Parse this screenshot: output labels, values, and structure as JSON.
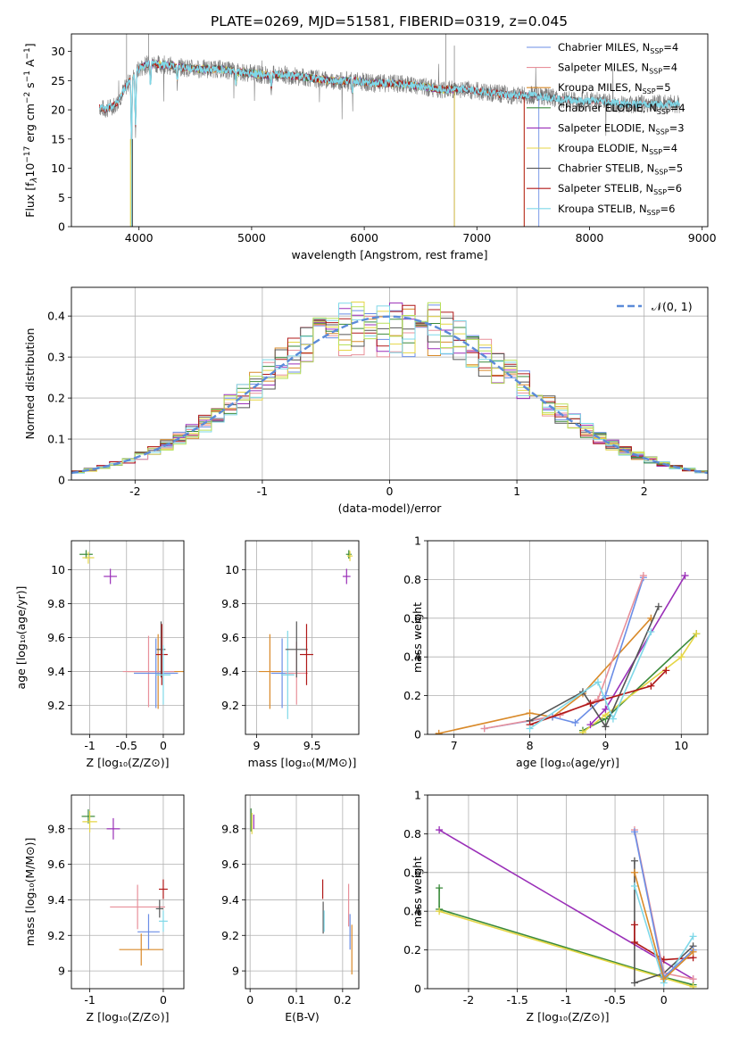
{
  "title": "PLATE=0269, MJD=51581, FIBERID=0319, z=0.045",
  "colors": {
    "Chabrier MILES": "#6b8ee6",
    "Salpeter MILES": "#e8909a",
    "Kroupa MILES": "#d98a2a",
    "Chabrier ELODIE": "#3a8a3a",
    "Salpeter ELODIE": "#9a2fb8",
    "Kroupa ELODIE": "#e5d645",
    "Chabrier STELIB": "#555555",
    "Salpeter STELIB": "#b01818",
    "Kroupa STELIB": "#7fd8e8",
    "pinkmag": "#e07ab8",
    "lime": "#b8e05a",
    "gauss": "#5b8bd8"
  },
  "chart_data": [
    {
      "id": "spectrum",
      "type": "line",
      "title": "PLATE=0269, MJD=51581, FIBERID=0319, z=0.045",
      "xlabel": "wavelength [Angstrom, rest frame]",
      "ylabel_pre": "Flux [f",
      "ylabel_sub": "λ",
      "ylabel_mid": "10",
      "ylabel_sup1": "−17",
      "ylabel_mid2": " erg cm",
      "ylabel_sup2": "−2",
      "ylabel_mid3": " s",
      "ylabel_sup3": "−1",
      "ylabel_mid4": " A",
      "ylabel_sup4": "−1",
      "ylabel_end": "]",
      "xlim": [
        3400,
        9050
      ],
      "ylim": [
        0,
        33
      ],
      "xticks": [
        4000,
        5000,
        6000,
        7000,
        8000,
        9000
      ],
      "yticks": [
        0,
        5,
        10,
        15,
        20,
        25,
        30
      ],
      "legend_position": "upper-right",
      "series": [
        {
          "name": "Chabrier MILES",
          "nssp": "4"
        },
        {
          "name": "Salpeter MILES",
          "nssp": "4"
        },
        {
          "name": "Kroupa MILES",
          "nssp": "5"
        },
        {
          "name": "Chabrier ELODIE",
          "nssp": "4"
        },
        {
          "name": "Salpeter ELODIE",
          "nssp": "3"
        },
        {
          "name": "Kroupa ELODIE",
          "nssp": "4"
        },
        {
          "name": "Chabrier STELIB",
          "nssp": "5"
        },
        {
          "name": "Salpeter STELIB",
          "nssp": "6"
        },
        {
          "name": "Kroupa STELIB",
          "nssp": "6"
        }
      ],
      "nssp_label": "N",
      "nssp_sub": "SSP",
      "data_envelope": {
        "x": [
          3650,
          3700,
          3800,
          3900,
          4000,
          4100,
          4300,
          4500,
          4700,
          4900,
          5100,
          5300,
          5500,
          5700,
          5900,
          6100,
          6300,
          6500,
          6700,
          6900,
          7100,
          7300,
          7500,
          7700,
          7900,
          8100,
          8300,
          8500,
          8700,
          8800
        ],
        "y": [
          20.5,
          20,
          21,
          24.5,
          27,
          28,
          27.5,
          27,
          27,
          26.5,
          26,
          26,
          25.5,
          25,
          25,
          24.5,
          24.5,
          24,
          23.5,
          23.5,
          23,
          22.5,
          22.5,
          22,
          21.5,
          21.5,
          21,
          21,
          21,
          21
        ]
      },
      "model_end": {
        "Kroupa MILES": 7420,
        "Salpeter STELIB": 7420,
        "Chabrier MILES": 7550,
        "Kroupa ELODIE": 6800,
        "Chabrier ELODIE": 6800,
        "Salpeter ELODIE": 6800
      }
    },
    {
      "id": "residuals",
      "type": "bar",
      "xlabel": "(data-model)/error",
      "ylabel": "Normed distribution",
      "xlim": [
        -2.5,
        2.5
      ],
      "ylim": [
        0,
        0.47
      ],
      "xticks": [
        -2,
        -1,
        0,
        1,
        2
      ],
      "yticks": [
        0.0,
        0.1,
        0.2,
        0.3,
        0.4
      ],
      "legend_position": "upper-right",
      "gauss_label": "𝒩(0, 1)",
      "bin_width": 0.1
    },
    {
      "id": "age_vs_Z",
      "type": "scatter",
      "xlabel": "Z [log₁₀(Z/Z⊙)]",
      "ylabel": "age  [log₁₀(age/yr)]",
      "xlim": [
        -1.25,
        0.28
      ],
      "ylim": [
        9.03,
        10.17
      ],
      "xticks": [
        -1,
        -0.5,
        0
      ],
      "yticks": [
        9.2,
        9.4,
        9.6,
        9.8,
        10.0
      ],
      "points": [
        {
          "series": "Chabrier ELODIE",
          "x": -1.05,
          "y": 10.09,
          "xe": 0.18,
          "ye": 0.05
        },
        {
          "series": "Kroupa ELODIE",
          "x": -1.02,
          "y": 10.07,
          "xe": 0.16,
          "ye": 0.07
        },
        {
          "series": "Salpeter ELODIE",
          "x": -0.72,
          "y": 9.96,
          "xe": 0.18,
          "ye": 0.09
        },
        {
          "series": "Kroupa MILES",
          "x": -0.07,
          "y": 9.4,
          "xe": 0.83,
          "ye": 0.44
        },
        {
          "series": "Salpeter MILES",
          "x": -0.2,
          "y": 9.4,
          "xe": 0.7,
          "ye": 0.42
        },
        {
          "series": "Chabrier MILES",
          "x": -0.1,
          "y": 9.39,
          "xe": 0.6,
          "ye": 0.41
        },
        {
          "series": "Chabrier STELIB",
          "x": -0.03,
          "y": 9.53,
          "xe": 0.12,
          "ye": 0.33
        },
        {
          "series": "Salpeter STELIB",
          "x": -0.02,
          "y": 9.5,
          "xe": 0.16,
          "ye": 0.36
        },
        {
          "series": "Kroupa STELIB",
          "x": 0.0,
          "y": 9.38,
          "xe": 0.2,
          "ye": 0.35
        }
      ]
    },
    {
      "id": "age_vs_mass",
      "type": "scatter",
      "xlabel": "mass [log₁₀(M/M⊙)]",
      "xlim": [
        8.9,
        9.92
      ],
      "ylim": [
        9.03,
        10.17
      ],
      "xticks": [
        9.0,
        9.5
      ],
      "yticks": [
        9.2,
        9.4,
        9.6,
        9.8,
        10.0
      ],
      "points": [
        {
          "series": "Chabrier ELODIE",
          "x": 9.83,
          "y": 10.09,
          "xe": 0.05,
          "ye": 0.05
        },
        {
          "series": "Kroupa ELODIE",
          "x": 9.84,
          "y": 10.08,
          "xe": 0.05,
          "ye": 0.06
        },
        {
          "series": "Salpeter ELODIE",
          "x": 9.81,
          "y": 9.96,
          "xe": 0.07,
          "ye": 0.09
        },
        {
          "series": "Kroupa MILES",
          "x": 9.12,
          "y": 9.4,
          "xe": 0.2,
          "ye": 0.44
        },
        {
          "series": "Chabrier MILES",
          "x": 9.23,
          "y": 9.39,
          "xe": 0.2,
          "ye": 0.41
        },
        {
          "series": "Salpeter MILES",
          "x": 9.36,
          "y": 9.39,
          "xe": 0.2,
          "ye": 0.37
        },
        {
          "series": "Kroupa STELIB",
          "x": 9.28,
          "y": 9.38,
          "xe": 0.12,
          "ye": 0.52
        },
        {
          "series": "Chabrier STELIB",
          "x": 9.36,
          "y": 9.53,
          "xe": 0.2,
          "ye": 0.33
        },
        {
          "series": "Salpeter STELIB",
          "x": 9.45,
          "y": 9.5,
          "xe": 0.12,
          "ye": 0.36
        }
      ]
    },
    {
      "id": "mass_weight_vs_age",
      "type": "line",
      "xlabel": "age  [log₁₀(age/yr)]",
      "ylabel": "mass weight",
      "xlim": [
        6.65,
        10.35
      ],
      "ylim": [
        0,
        1.0
      ],
      "xticks": [
        7,
        8,
        9,
        10
      ],
      "yticks": [
        0.0,
        0.2,
        0.4,
        0.6,
        0.8,
        1.0
      ],
      "series": [
        {
          "name": "Kroupa MILES",
          "x": [
            6.8,
            8.0,
            8.3,
            8.7,
            9.6
          ],
          "y": [
            0.005,
            0.11,
            0.09,
            0.21,
            0.6
          ]
        },
        {
          "name": "Chabrier MILES",
          "x": [
            7.4,
            8.3,
            8.6,
            9.0,
            9.5
          ],
          "y": [
            0.03,
            0.09,
            0.06,
            0.2,
            0.81
          ]
        },
        {
          "name": "Salpeter MILES",
          "x": [
            7.4,
            8.4,
            8.9,
            9.5
          ],
          "y": [
            0.03,
            0.1,
            0.18,
            0.82
          ]
        },
        {
          "name": "Chabrier ELODIE",
          "x": [
            8.7,
            9.0,
            10.2
          ],
          "y": [
            0.02,
            0.08,
            0.52
          ]
        },
        {
          "name": "Kroupa ELODIE",
          "x": [
            8.7,
            9.0,
            10.0,
            10.2
          ],
          "y": [
            0.01,
            0.1,
            0.4,
            0.52
          ]
        },
        {
          "name": "Salpeter ELODIE",
          "x": [
            8.8,
            9.0,
            10.05
          ],
          "y": [
            0.05,
            0.13,
            0.82
          ]
        },
        {
          "name": "Chabrier STELIB",
          "x": [
            8.0,
            8.7,
            9.0,
            9.7
          ],
          "y": [
            0.07,
            0.22,
            0.04,
            0.66
          ]
        },
        {
          "name": "Salpeter STELIB",
          "x": [
            8.0,
            8.8,
            9.6,
            9.8
          ],
          "y": [
            0.05,
            0.16,
            0.25,
            0.33
          ]
        },
        {
          "name": "Kroupa STELIB",
          "x": [
            8.0,
            8.9,
            9.1,
            9.6
          ],
          "y": [
            0.03,
            0.27,
            0.08,
            0.53
          ]
        }
      ]
    },
    {
      "id": "mass_vs_Z",
      "type": "scatter",
      "xlabel": "Z [log₁₀(Z/Z⊙)]",
      "ylabel": "mass [log₁₀(M/M⊙)]",
      "xlim": [
        -1.25,
        0.28
      ],
      "ylim": [
        8.9,
        9.99
      ],
      "xticks": [
        -1,
        0
      ],
      "yticks": [
        9.0,
        9.2,
        9.4,
        9.6,
        9.8
      ],
      "points": [
        {
          "series": "Chabrier ELODIE",
          "x": -1.02,
          "y": 9.87,
          "xe": 0.18,
          "ye": 0.08
        },
        {
          "series": "Kroupa ELODIE",
          "x": -1.0,
          "y": 9.84,
          "xe": 0.2,
          "ye": 0.12
        },
        {
          "series": "Salpeter ELODIE",
          "x": -0.68,
          "y": 9.8,
          "xe": 0.18,
          "ye": 0.12
        },
        {
          "series": "Salpeter MILES",
          "x": -0.35,
          "y": 9.36,
          "xe": 0.75,
          "ye": 0.25
        },
        {
          "series": "Chabrier MILES",
          "x": -0.2,
          "y": 9.22,
          "xe": 0.3,
          "ye": 0.2
        },
        {
          "series": "Kroupa MILES",
          "x": -0.3,
          "y": 9.12,
          "xe": 0.6,
          "ye": 0.18
        },
        {
          "series": "Salpeter STELIB",
          "x": 0.0,
          "y": 9.46,
          "xe": 0.12,
          "ye": 0.11
        },
        {
          "series": "Chabrier STELIB",
          "x": -0.05,
          "y": 9.35,
          "xe": 0.1,
          "ye": 0.1
        },
        {
          "series": "Kroupa STELIB",
          "x": 0.0,
          "y": 9.28,
          "xe": 0.12,
          "ye": 0.12
        }
      ]
    },
    {
      "id": "mass_vs_ebv",
      "type": "scatter",
      "xlabel": "E(B-V)",
      "xlim": [
        -0.01,
        0.235
      ],
      "ylim": [
        8.9,
        9.99
      ],
      "xticks": [
        0.0,
        0.1,
        0.2
      ],
      "yticks": [
        9.0,
        9.2,
        9.4,
        9.6,
        9.8
      ],
      "points": [
        {
          "series": "Chabrier ELODIE",
          "x": 0.002,
          "y": 9.85,
          "ye": 0.13
        },
        {
          "series": "Kroupa ELODIE",
          "x": 0.004,
          "y": 9.83,
          "ye": 0.12
        },
        {
          "series": "Salpeter ELODIE",
          "x": 0.008,
          "y": 9.84,
          "ye": 0.08
        },
        {
          "series": "Salpeter STELIB",
          "x": 0.157,
          "y": 9.46,
          "ye": 0.11
        },
        {
          "series": "Chabrier STELIB",
          "x": 0.158,
          "y": 9.3,
          "ye": 0.18
        },
        {
          "series": "Kroupa STELIB",
          "x": 0.16,
          "y": 9.28,
          "ye": 0.12
        },
        {
          "series": "Salpeter MILES",
          "x": 0.213,
          "y": 9.37,
          "ye": 0.24
        },
        {
          "series": "Chabrier MILES",
          "x": 0.216,
          "y": 9.22,
          "ye": 0.2
        },
        {
          "series": "Kroupa MILES",
          "x": 0.22,
          "y": 9.12,
          "ye": 0.28
        }
      ]
    },
    {
      "id": "mass_weight_vs_Z",
      "type": "line",
      "xlabel": "Z [log₁₀(Z/Z⊙)]",
      "ylabel": "mass weight",
      "xlim": [
        -2.42,
        0.45
      ],
      "ylim": [
        0,
        1.0
      ],
      "xticks": [
        -2.0,
        -1.5,
        -1.0,
        -0.5,
        0.0
      ],
      "yticks": [
        0.0,
        0.2,
        0.4,
        0.6,
        0.8,
        1.0
      ],
      "series": [
        {
          "name": "Salpeter ELODIE",
          "x": [
            -2.3,
            0.3
          ],
          "y": [
            0.82,
            0.05
          ]
        },
        {
          "name": "Chabrier ELODIE",
          "x": [
            -2.3,
            -2.3,
            0.0,
            0.3
          ],
          "y": [
            0.52,
            0.41,
            0.06,
            0.02
          ]
        },
        {
          "name": "Kroupa ELODIE",
          "x": [
            -2.3,
            0.3
          ],
          "y": [
            0.4,
            0.01
          ]
        },
        {
          "name": "Chabrier STELIB",
          "x": [
            -0.3,
            -0.3,
            0.0,
            0.3
          ],
          "y": [
            0.66,
            0.03,
            0.08,
            0.22
          ]
        },
        {
          "name": "Salpeter STELIB",
          "x": [
            -0.3,
            -0.3,
            0.0,
            0.3
          ],
          "y": [
            0.33,
            0.24,
            0.15,
            0.16
          ]
        },
        {
          "name": "Kroupa STELIB",
          "x": [
            -0.3,
            0.0,
            0.3
          ],
          "y": [
            0.53,
            0.03,
            0.27
          ]
        },
        {
          "name": "Salpeter MILES",
          "x": [
            -0.3,
            0.0,
            0.3
          ],
          "y": [
            0.82,
            0.08,
            0.05
          ]
        },
        {
          "name": "Chabrier MILES",
          "x": [
            -0.3,
            0.0,
            0.3
          ],
          "y": [
            0.81,
            0.06,
            0.2
          ]
        },
        {
          "name": "Kroupa MILES",
          "x": [
            -0.3,
            0.0,
            0.3
          ],
          "y": [
            0.6,
            0.05,
            0.19
          ]
        }
      ]
    }
  ]
}
